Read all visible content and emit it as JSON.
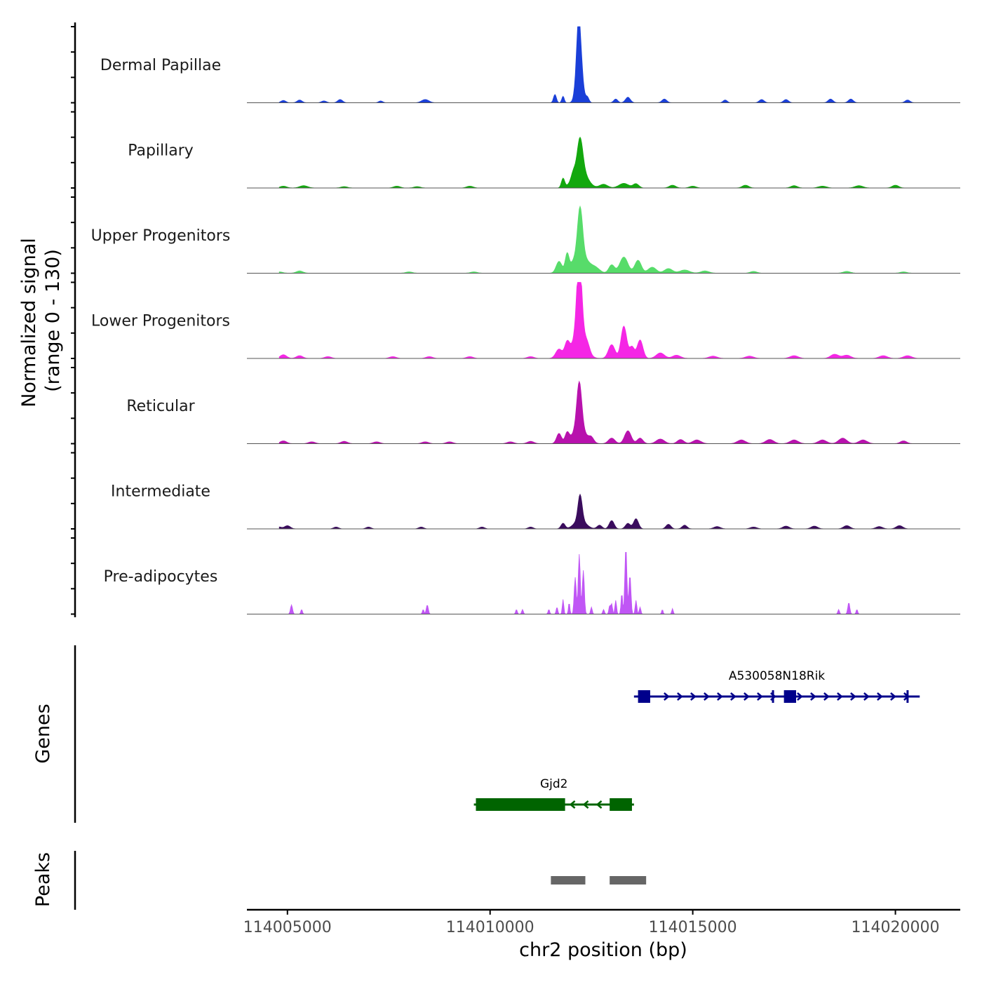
{
  "chart_data": {
    "type": "area",
    "title": "",
    "ylabel_line1": "Normalized signal",
    "ylabel_line2": "(range 0 - 130)",
    "ylim": [
      0,
      130
    ],
    "genes_label": "Genes",
    "peaks_label": "Peaks",
    "xlabel": "chr2 position (bp)",
    "xlim": [
      114004000,
      114021600
    ],
    "x_ticks": [
      114005000,
      114010000,
      114015000,
      114020000
    ],
    "x_tick_labels": [
      "114005000",
      "114010000",
      "114015000",
      "114020000"
    ],
    "tracks": [
      {
        "name": "Dermal Papillae",
        "color": "#1a3fd8",
        "peaks": [
          [
            114012200,
            130,
            70
          ],
          [
            114012180,
            60,
            45
          ],
          [
            114011600,
            18,
            35
          ],
          [
            114011800,
            14,
            30
          ],
          [
            114012400,
            12,
            40
          ],
          [
            114013400,
            12,
            60
          ],
          [
            114013100,
            8,
            50
          ],
          [
            114014300,
            8,
            60
          ],
          [
            114015800,
            6,
            50
          ],
          [
            114016700,
            7,
            60
          ],
          [
            114017300,
            7,
            60
          ],
          [
            114018400,
            8,
            60
          ],
          [
            114018900,
            8,
            60
          ],
          [
            114020300,
            6,
            60
          ],
          [
            114008400,
            7,
            90
          ],
          [
            114006300,
            7,
            60
          ],
          [
            114005300,
            6,
            60
          ],
          [
            114005900,
            4,
            60
          ],
          [
            114004900,
            5,
            60
          ],
          [
            114007300,
            4,
            50
          ]
        ]
      },
      {
        "name": "Papillary",
        "color": "#13a80e",
        "peaks": [
          [
            114012220,
            65,
            65
          ],
          [
            114012220,
            45,
            160
          ],
          [
            114011800,
            20,
            40
          ],
          [
            114012050,
            12,
            50
          ],
          [
            114013300,
            10,
            120
          ],
          [
            114013600,
            9,
            70
          ],
          [
            114012800,
            8,
            100
          ],
          [
            114014500,
            6,
            80
          ],
          [
            114016300,
            6,
            80
          ],
          [
            114017500,
            5,
            80
          ],
          [
            114019100,
            5,
            100
          ],
          [
            114020000,
            6,
            80
          ],
          [
            114009500,
            4,
            80
          ],
          [
            114007700,
            4,
            80
          ],
          [
            114005400,
            5,
            100
          ],
          [
            114006400,
            3,
            80
          ],
          [
            114004900,
            4,
            80
          ],
          [
            114008200,
            3,
            80
          ],
          [
            114015000,
            4,
            80
          ],
          [
            114018200,
            4,
            100
          ]
        ]
      },
      {
        "name": "Upper Progenitors",
        "color": "#57dc6a",
        "peaks": [
          [
            114012220,
            100,
            60
          ],
          [
            114012220,
            45,
            180
          ],
          [
            114011700,
            25,
            70
          ],
          [
            114011900,
            35,
            45
          ],
          [
            114012600,
            10,
            110
          ],
          [
            114013300,
            35,
            100
          ],
          [
            114013650,
            28,
            80
          ],
          [
            114013000,
            18,
            70
          ],
          [
            114014000,
            13,
            100
          ],
          [
            114014400,
            10,
            100
          ],
          [
            114014800,
            7,
            120
          ],
          [
            114015300,
            5,
            100
          ],
          [
            114016500,
            4,
            80
          ],
          [
            114018800,
            4,
            90
          ],
          [
            114020200,
            3,
            80
          ],
          [
            114005300,
            5,
            80
          ],
          [
            114004800,
            3,
            80
          ],
          [
            114008000,
            3,
            80
          ],
          [
            114009600,
            3,
            80
          ]
        ]
      },
      {
        "name": "Lower Progenitors",
        "color": "#f526e5",
        "peaks": [
          [
            114012200,
            165,
            60
          ],
          [
            114012200,
            60,
            150
          ],
          [
            114011700,
            20,
            80
          ],
          [
            114011900,
            30,
            60
          ],
          [
            114012400,
            14,
            60
          ],
          [
            114013300,
            70,
            70
          ],
          [
            114013700,
            40,
            70
          ],
          [
            114013000,
            30,
            80
          ],
          [
            114013500,
            25,
            60
          ],
          [
            114014200,
            12,
            100
          ],
          [
            114014600,
            7,
            100
          ],
          [
            114015500,
            5,
            100
          ],
          [
            114016400,
            5,
            100
          ],
          [
            114017500,
            6,
            100
          ],
          [
            114018500,
            9,
            100
          ],
          [
            114018800,
            7,
            100
          ],
          [
            114019700,
            6,
            100
          ],
          [
            114020300,
            6,
            100
          ],
          [
            114004900,
            8,
            80
          ],
          [
            114005300,
            6,
            80
          ],
          [
            114006000,
            4,
            80
          ],
          [
            114007600,
            4,
            80
          ],
          [
            114008500,
            4,
            80
          ],
          [
            114009500,
            4,
            80
          ],
          [
            114011000,
            4,
            80
          ]
        ]
      },
      {
        "name": "Reticular",
        "color": "#b812ad",
        "peaks": [
          [
            114012200,
            100,
            60
          ],
          [
            114012200,
            35,
            160
          ],
          [
            114011700,
            22,
            60
          ],
          [
            114011900,
            20,
            50
          ],
          [
            114012500,
            10,
            60
          ],
          [
            114013400,
            28,
            80
          ],
          [
            114013700,
            12,
            70
          ],
          [
            114013000,
            12,
            80
          ],
          [
            114014200,
            10,
            100
          ],
          [
            114014700,
            9,
            80
          ],
          [
            114015100,
            8,
            100
          ],
          [
            114016200,
            8,
            100
          ],
          [
            114016900,
            9,
            100
          ],
          [
            114017500,
            8,
            100
          ],
          [
            114018200,
            8,
            100
          ],
          [
            114018700,
            12,
            100
          ],
          [
            114019200,
            8,
            100
          ],
          [
            114020200,
            6,
            80
          ],
          [
            114004900,
            6,
            80
          ],
          [
            114005600,
            4,
            80
          ],
          [
            114006400,
            5,
            80
          ],
          [
            114007200,
            4,
            80
          ],
          [
            114008400,
            4,
            80
          ],
          [
            114009000,
            4,
            80
          ],
          [
            114010500,
            4,
            80
          ],
          [
            114011000,
            5,
            80
          ]
        ]
      },
      {
        "name": "Intermediate",
        "color": "#3a0c5d",
        "peaks": [
          [
            114012220,
            55,
            50
          ],
          [
            114012220,
            20,
            140
          ],
          [
            114011800,
            12,
            50
          ],
          [
            114012700,
            8,
            60
          ],
          [
            114013000,
            18,
            60
          ],
          [
            114013600,
            22,
            60
          ],
          [
            114013400,
            12,
            60
          ],
          [
            114014400,
            10,
            60
          ],
          [
            114014800,
            8,
            60
          ],
          [
            114015600,
            5,
            80
          ],
          [
            114016500,
            4,
            80
          ],
          [
            114017300,
            6,
            80
          ],
          [
            114018000,
            6,
            80
          ],
          [
            114018800,
            7,
            80
          ],
          [
            114019600,
            5,
            80
          ],
          [
            114020100,
            7,
            80
          ],
          [
            114005000,
            7,
            70
          ],
          [
            114004800,
            4,
            60
          ],
          [
            114006200,
            4,
            60
          ],
          [
            114007000,
            4,
            60
          ],
          [
            114008300,
            4,
            60
          ],
          [
            114009800,
            4,
            60
          ],
          [
            114011000,
            4,
            60
          ]
        ]
      },
      {
        "name": "Pre-adipocytes",
        "color": "#c056f5",
        "peaks": [
          [
            114012200,
            130,
            25
          ],
          [
            114012300,
            95,
            25
          ],
          [
            114012100,
            80,
            25
          ],
          [
            114011800,
            32,
            18
          ],
          [
            114011950,
            25,
            18
          ],
          [
            114012500,
            15,
            20
          ],
          [
            114012800,
            10,
            20
          ],
          [
            114013350,
            145,
            25
          ],
          [
            114013450,
            85,
            25
          ],
          [
            114013250,
            45,
            20
          ],
          [
            114013100,
            30,
            20
          ],
          [
            114013000,
            22,
            20
          ],
          [
            114012950,
            18,
            20
          ],
          [
            114013600,
            30,
            20
          ],
          [
            114013700,
            15,
            20
          ],
          [
            114014250,
            10,
            18
          ],
          [
            114014500,
            12,
            18
          ],
          [
            114005100,
            20,
            25
          ],
          [
            114005350,
            10,
            20
          ],
          [
            114008450,
            20,
            25
          ],
          [
            114008350,
            10,
            20
          ],
          [
            114010650,
            10,
            20
          ],
          [
            114010800,
            10,
            20
          ],
          [
            114011450,
            10,
            20
          ],
          [
            114011650,
            15,
            20
          ],
          [
            114018850,
            25,
            25
          ],
          [
            114018600,
            10,
            20
          ],
          [
            114019050,
            10,
            20
          ]
        ]
      }
    ],
    "genes": [
      {
        "name": "A530058N18Rik",
        "color": "#00008b",
        "start": 114013550,
        "end": 114020600,
        "strand": "+",
        "exons": [
          [
            114013650,
            114013950
          ],
          [
            114017250,
            114017550
          ]
        ],
        "marks": [
          114016980,
          114020300
        ]
      },
      {
        "name": "Gjd2",
        "color": "#006400",
        "start": 114009600,
        "end": 114013550,
        "strand": "-",
        "exons": [
          [
            114009650,
            114011850
          ],
          [
            114012950,
            114013500
          ]
        ],
        "marks": []
      }
    ],
    "peak_regions": [
      [
        114011500,
        114012350
      ],
      [
        114012950,
        114013850
      ]
    ],
    "peak_region_color": "#666666"
  }
}
